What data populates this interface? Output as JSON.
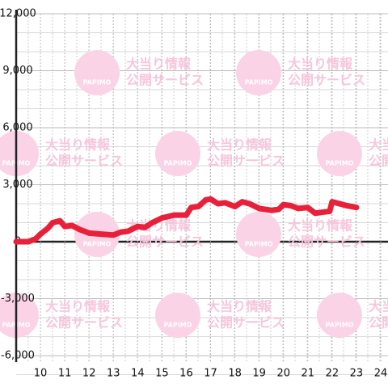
{
  "chart_data": {
    "type": "line",
    "x": [
      9,
      9.5,
      9.8,
      10,
      10.3,
      10.5,
      10.8,
      11,
      11.3,
      11.6,
      12,
      12.5,
      13,
      13.3,
      13.6,
      14,
      14.3,
      14.6,
      15,
      15.5,
      16,
      16.2,
      16.5,
      16.8,
      17,
      17.3,
      17.6,
      18,
      18.3,
      18.6,
      19,
      19.5,
      19.8,
      20,
      20.3,
      20.6,
      21,
      21.3,
      21.6,
      21.9,
      22,
      22.3,
      22.6,
      23
    ],
    "series": [
      {
        "color": "#e8203a",
        "values": [
          0,
          0,
          150,
          400,
          700,
          1000,
          1100,
          800,
          850,
          650,
          450,
          400,
          350,
          500,
          550,
          800,
          750,
          1000,
          1250,
          1400,
          1400,
          1800,
          1850,
          2200,
          2250,
          2000,
          2050,
          1850,
          2100,
          2000,
          1750,
          1650,
          1700,
          1950,
          1900,
          1750,
          1800,
          1500,
          1550,
          1600,
          2100,
          2000,
          1900,
          1800
        ]
      }
    ],
    "xlim": [
      9,
      24.3
    ],
    "xticks": [
      10,
      11,
      12,
      13,
      14,
      15,
      16,
      17,
      18,
      19,
      20,
      21,
      22,
      23,
      24
    ],
    "ylim": [
      -6000,
      12000
    ],
    "yticks": [
      {
        "value": -6000,
        "label": "-6,000"
      },
      {
        "value": -3000,
        "label": "-3,000"
      },
      0,
      {
        "value": 3000,
        "label": "3,000"
      },
      {
        "value": 6000,
        "label": "6,000"
      },
      {
        "value": 9000,
        "label": "9,000"
      },
      {
        "value": 12000,
        "label": "12,000"
      }
    ],
    "grid": true
  },
  "watermark": {
    "line1": "大当り情報",
    "line2": "公開サービス",
    "logo": "PAPIMO"
  }
}
